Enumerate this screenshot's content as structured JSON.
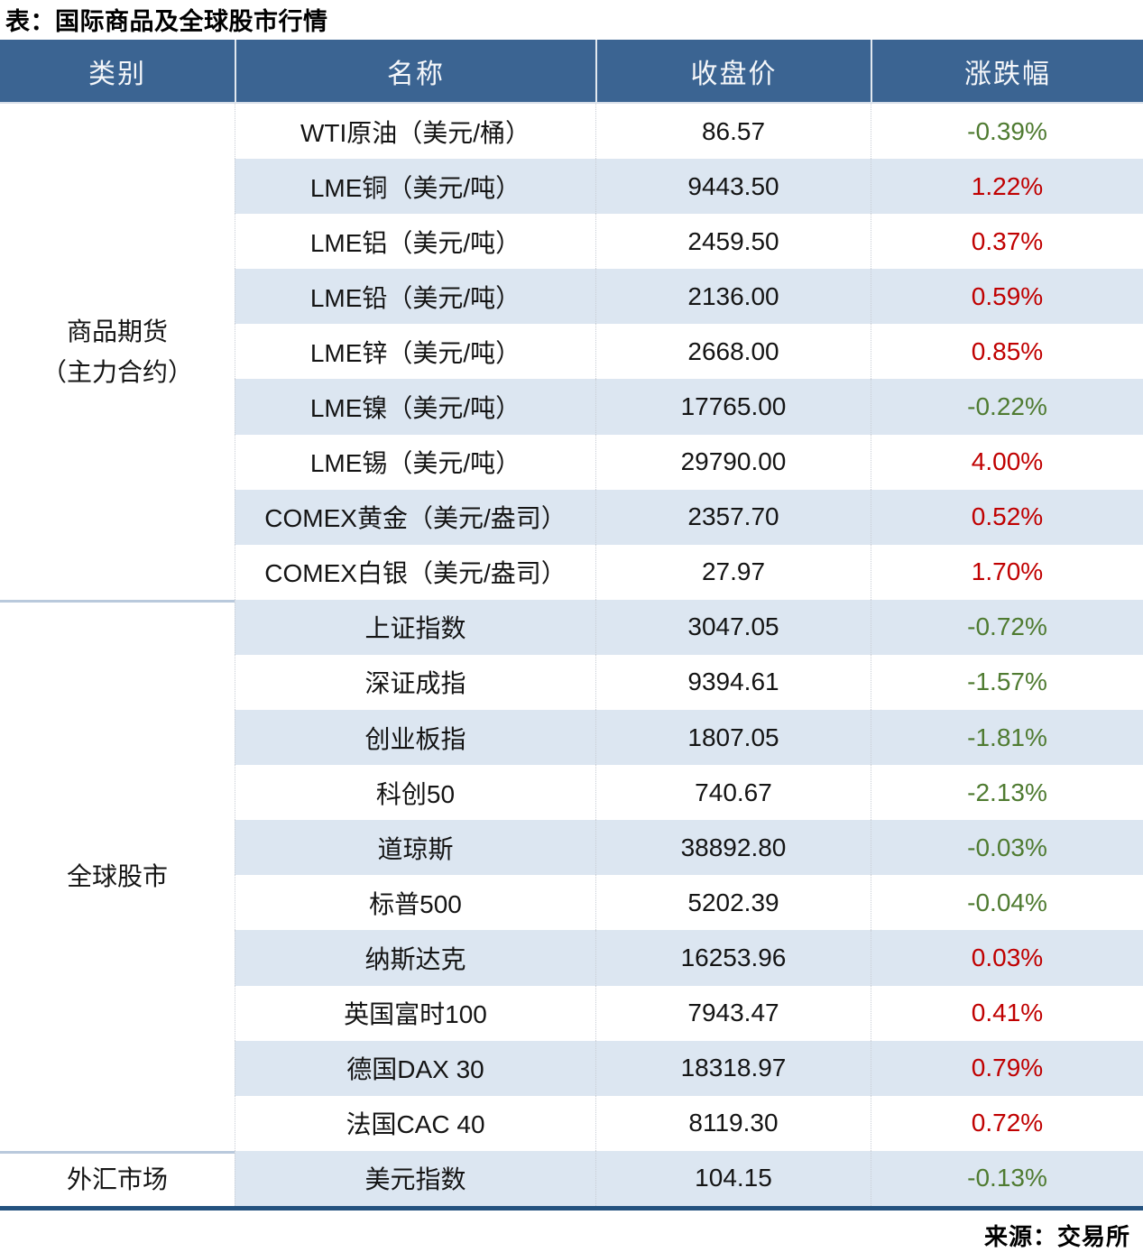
{
  "chart_data": {
    "type": "table",
    "title": "表：国际商品及全球股市行情",
    "columns": [
      "类别",
      "名称",
      "收盘价",
      "涨跌幅"
    ],
    "sections": [
      {
        "category": "商品期货（主力合约）",
        "category_lines": [
          "商品期货",
          "（主力合约）"
        ],
        "rows": [
          {
            "name": "WTI原油（美元/桶）",
            "close": "86.57",
            "change": "-0.39%"
          },
          {
            "name": "LME铜（美元/吨）",
            "close": "9443.50",
            "change": "1.22%"
          },
          {
            "name": "LME铝（美元/吨）",
            "close": "2459.50",
            "change": "0.37%"
          },
          {
            "name": "LME铅（美元/吨）",
            "close": "2136.00",
            "change": "0.59%"
          },
          {
            "name": "LME锌（美元/吨）",
            "close": "2668.00",
            "change": "0.85%"
          },
          {
            "name": "LME镍（美元/吨）",
            "close": "17765.00",
            "change": "-0.22%"
          },
          {
            "name": "LME锡（美元/吨）",
            "close": "29790.00",
            "change": "4.00%"
          },
          {
            "name": "COMEX黄金（美元/盎司）",
            "close": "2357.70",
            "change": "0.52%"
          },
          {
            "name": "COMEX白银（美元/盎司）",
            "close": "27.97",
            "change": "1.70%"
          }
        ]
      },
      {
        "category": "全球股市",
        "category_lines": [
          "全球股市"
        ],
        "rows": [
          {
            "name": "上证指数",
            "close": "3047.05",
            "change": "-0.72%"
          },
          {
            "name": "深证成指",
            "close": "9394.61",
            "change": "-1.57%"
          },
          {
            "name": "创业板指",
            "close": "1807.05",
            "change": "-1.81%"
          },
          {
            "name": "科创50",
            "close": "740.67",
            "change": "-2.13%"
          },
          {
            "name": "道琼斯",
            "close": "38892.80",
            "change": "-0.03%"
          },
          {
            "name": "标普500",
            "close": "5202.39",
            "change": "-0.04%"
          },
          {
            "name": "纳斯达克",
            "close": "16253.96",
            "change": "0.03%"
          },
          {
            "name": "英国富时100",
            "close": "7943.47",
            "change": "0.41%"
          },
          {
            "name": "德国DAX 30",
            "close": "18318.97",
            "change": "0.79%"
          },
          {
            "name": "法国CAC 40",
            "close": "8119.30",
            "change": "0.72%"
          }
        ]
      },
      {
        "category": "外汇市场",
        "category_lines": [
          "外汇市场"
        ],
        "rows": [
          {
            "name": "美元指数",
            "close": "104.15",
            "change": "-0.13%"
          }
        ]
      }
    ],
    "source": "来源：交易所",
    "layout": {
      "legend": "off",
      "grid": "alternating-row-shading"
    }
  },
  "colors": {
    "header_bg": "#3B6492",
    "header_text": "#F5F7FA",
    "alt_row_bg": "#DCE6F1",
    "positive_change": "#C00000",
    "negative_change": "#4F7B31",
    "bottom_border": "#24527F"
  }
}
